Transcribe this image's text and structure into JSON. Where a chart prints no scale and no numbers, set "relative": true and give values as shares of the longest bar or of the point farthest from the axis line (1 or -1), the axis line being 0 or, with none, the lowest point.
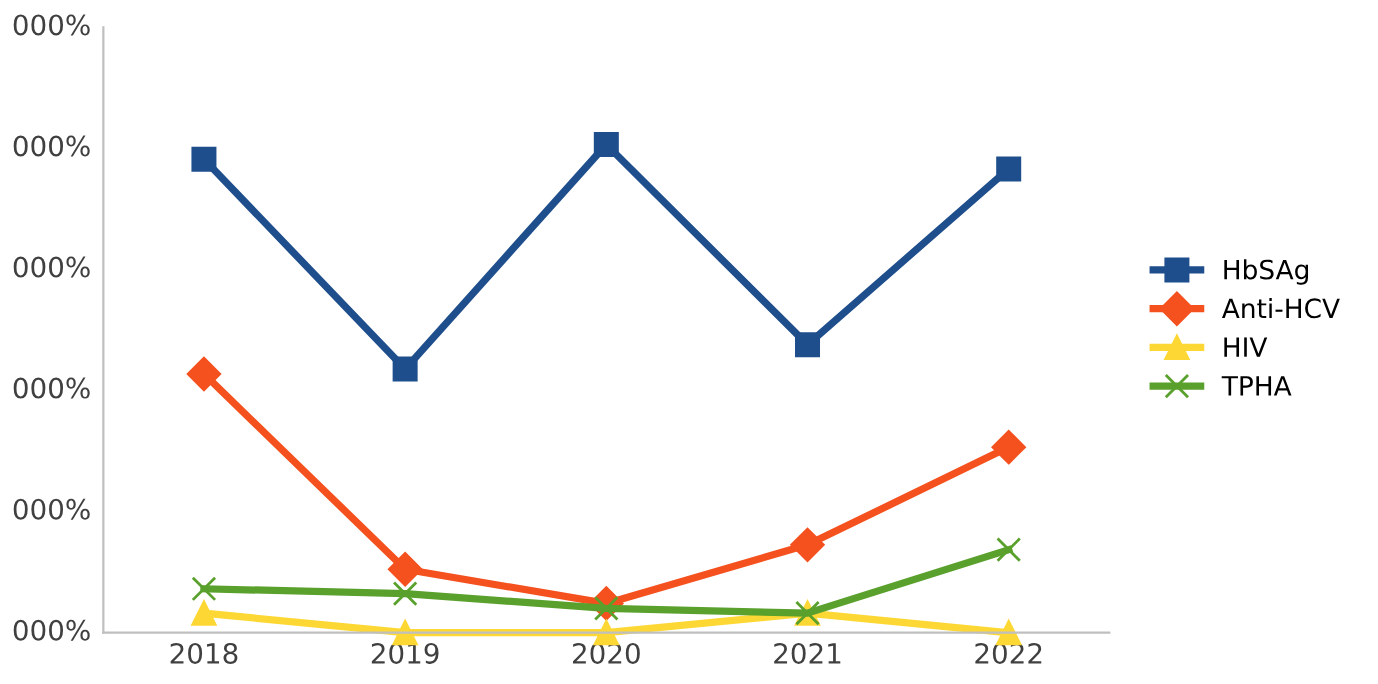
{
  "chart_data": {
    "type": "line",
    "categories": [
      "2018",
      "2019",
      "2020",
      "2021",
      "2022"
    ],
    "series": [
      {
        "name": "HbSAg",
        "color": "#1f4e8c",
        "marker": "square",
        "values": [
          0.97,
          0.54,
          1,
          0.59,
          0.95
        ]
      },
      {
        "name": "Anti-HCV",
        "color": "#f4511e",
        "marker": "diamond",
        "values": [
          0.53,
          0.13,
          0.06,
          0.18,
          0.38
        ]
      },
      {
        "name": "HIV",
        "color": "#fdd835",
        "marker": "triangle",
        "values": [
          0.04,
          0,
          0,
          0.04,
          0
        ]
      },
      {
        "name": "TPHA",
        "color": "#5aa02c",
        "marker": "cross",
        "values": [
          0.09,
          0.08,
          0.05,
          0.04,
          0.17
        ]
      }
    ],
    "annotations": [
      "000%",
      "000%",
      "000%",
      "000%",
      "000%",
      "000%"
    ],
    "relative": true,
    "legend": "right",
    "line_style": "solid"
  }
}
